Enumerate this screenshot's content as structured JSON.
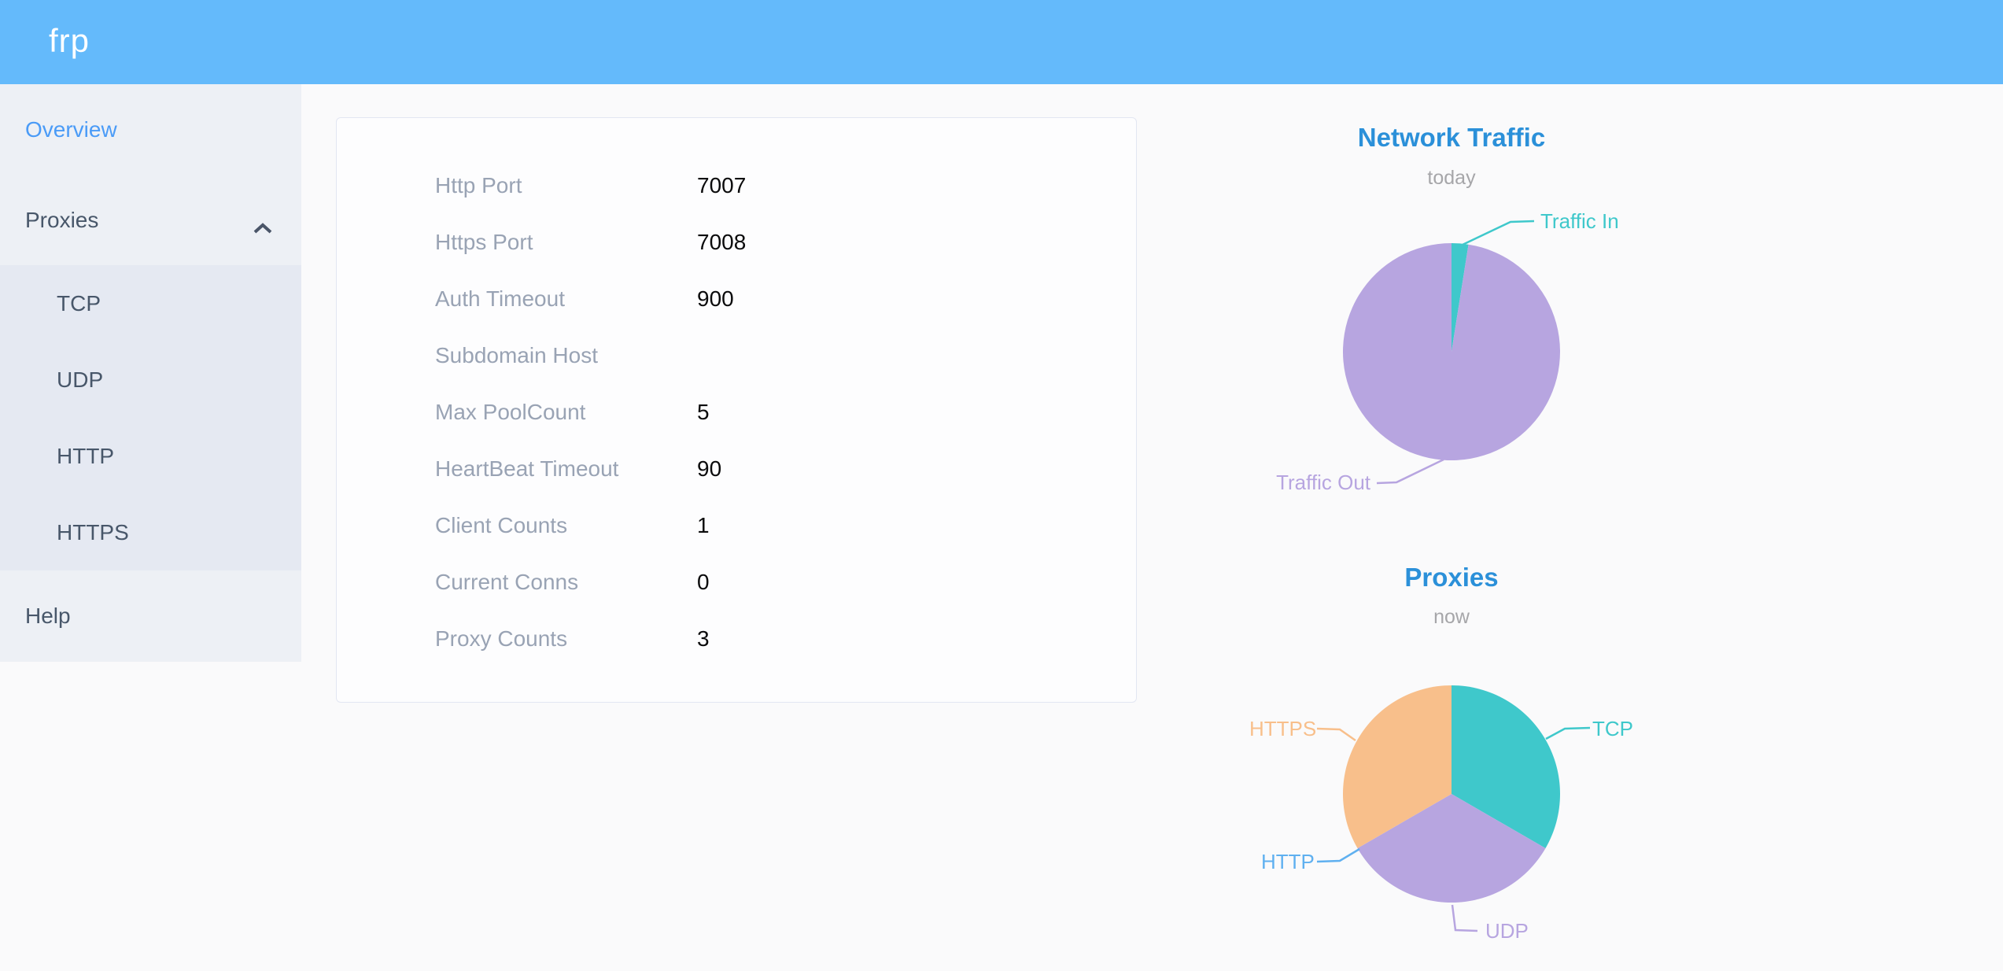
{
  "header": {
    "logo": "frp"
  },
  "sidebar": {
    "overview": "Overview",
    "proxies": "Proxies",
    "proxies_children": [
      "TCP",
      "UDP",
      "HTTP",
      "HTTPS"
    ],
    "help": "Help"
  },
  "server_info": {
    "rows": [
      {
        "label": "Http Port",
        "value": "7007"
      },
      {
        "label": "Https Port",
        "value": "7008"
      },
      {
        "label": "Auth Timeout",
        "value": "900"
      },
      {
        "label": "Subdomain Host",
        "value": ""
      },
      {
        "label": "Max PoolCount",
        "value": "5"
      },
      {
        "label": "HeartBeat Timeout",
        "value": "90"
      },
      {
        "label": "Client Counts",
        "value": "1"
      },
      {
        "label": "Current Conns",
        "value": "0"
      },
      {
        "label": "Proxy Counts",
        "value": "3"
      }
    ]
  },
  "chart_data": [
    {
      "type": "pie",
      "title": "Network Traffic",
      "subtitle": "today",
      "legend_position": "none",
      "series": [
        {
          "name": "Traffic In",
          "value": 2.5,
          "color": "#3fc8cb"
        },
        {
          "name": "Traffic Out",
          "value": 97.5,
          "color": "#b7a5e0"
        }
      ]
    },
    {
      "type": "pie",
      "title": "Proxies",
      "subtitle": "now",
      "legend_position": "none",
      "series": [
        {
          "name": "TCP",
          "value": 1,
          "color": "#3fc8cb"
        },
        {
          "name": "UDP",
          "value": 1,
          "color": "#b7a5e0"
        },
        {
          "name": "HTTP",
          "value": 0,
          "color": "#5fb0f0"
        },
        {
          "name": "HTTPS",
          "value": 1,
          "color": "#f8bf8b"
        }
      ]
    }
  ],
  "colors": {
    "header_bg": "#64bafb",
    "header_text": "#ffffff",
    "sidebar_bg": "#edf0f5",
    "submenu_bg": "#e5e9f2",
    "menu_text": "#48576a",
    "menu_active": "#4a9bf7",
    "chart_title": "#2b90d9",
    "chart_subtitle": "#a6a6a9",
    "card_label": "#99a3b4",
    "card_value": "#0b0b0c"
  }
}
